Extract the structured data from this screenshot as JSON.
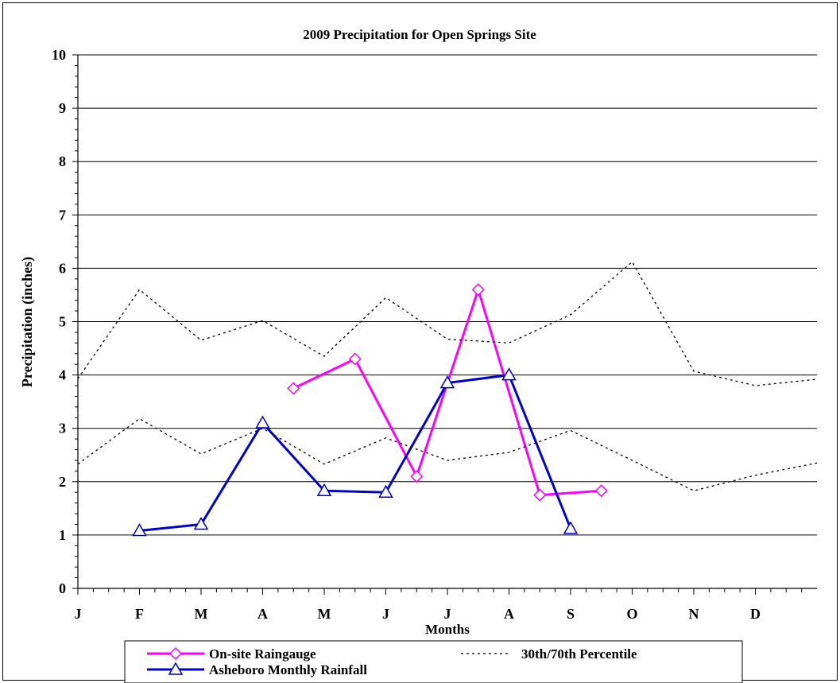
{
  "chart_data": {
    "type": "line",
    "title": "2009 Precipitation for Open Springs Site",
    "xlabel": "Months",
    "ylabel": "Precipitation (inches)",
    "ylim": [
      0,
      10
    ],
    "yticks": [
      "0",
      "1",
      "2",
      "3",
      "4",
      "5",
      "6",
      "7",
      "8",
      "9",
      "10"
    ],
    "categories": [
      "J",
      "F",
      "M",
      "A",
      "M",
      "J",
      "J",
      "A",
      "S",
      "O",
      "N",
      "D"
    ],
    "grid": true,
    "legend_position": "bottom",
    "series": [
      {
        "name": "On-site Raingauge",
        "style": "solid-diamond",
        "color": "#ff00ff",
        "points": [
          [
            3.5,
            3.75
          ],
          [
            4.5,
            4.3
          ],
          [
            5.5,
            2.1
          ],
          [
            6.5,
            5.6
          ],
          [
            7.5,
            1.75
          ],
          [
            8.5,
            1.83
          ]
        ]
      },
      {
        "name": "Asheboro Monthly Rainfall",
        "style": "solid-triangle",
        "color": "#0000cc",
        "points": [
          [
            1.0,
            1.08
          ],
          [
            2.0,
            1.2
          ],
          [
            3.0,
            3.1
          ],
          [
            4.0,
            1.83
          ],
          [
            5.0,
            1.8
          ],
          [
            6.0,
            3.85
          ],
          [
            7.0,
            4.0
          ],
          [
            8.0,
            1.12
          ]
        ]
      },
      {
        "name": "30th/70th Percentile",
        "style": "dashed",
        "color": "#000000",
        "points": [
          [
            0.0,
            3.93
          ],
          [
            1.0,
            5.6
          ],
          [
            2.0,
            4.65
          ],
          [
            3.0,
            5.02
          ],
          [
            4.0,
            4.35
          ],
          [
            5.0,
            5.45
          ],
          [
            6.0,
            4.67
          ],
          [
            7.0,
            4.6
          ],
          [
            8.0,
            5.13
          ],
          [
            9.0,
            6.12
          ],
          [
            10.0,
            4.07
          ],
          [
            11.0,
            3.8
          ],
          [
            12.0,
            3.92
          ]
        ]
      },
      {
        "name": "",
        "style": "dashed",
        "color": "#000000",
        "points": [
          [
            0.0,
            2.33
          ],
          [
            1.0,
            3.18
          ],
          [
            2.0,
            2.52
          ],
          [
            3.0,
            3.0
          ],
          [
            4.0,
            2.33
          ],
          [
            5.0,
            2.82
          ],
          [
            6.0,
            2.4
          ],
          [
            7.0,
            2.55
          ],
          [
            8.0,
            2.96
          ],
          [
            9.0,
            2.4
          ],
          [
            10.0,
            1.83
          ],
          [
            11.0,
            2.12
          ],
          [
            12.0,
            2.35
          ]
        ]
      }
    ],
    "legend": [
      {
        "label": "On-site Raingauge",
        "series": 0
      },
      {
        "label": "30th/70th Percentile",
        "series": 2
      },
      {
        "label": "Asheboro Monthly Rainfall",
        "series": 1
      }
    ]
  }
}
